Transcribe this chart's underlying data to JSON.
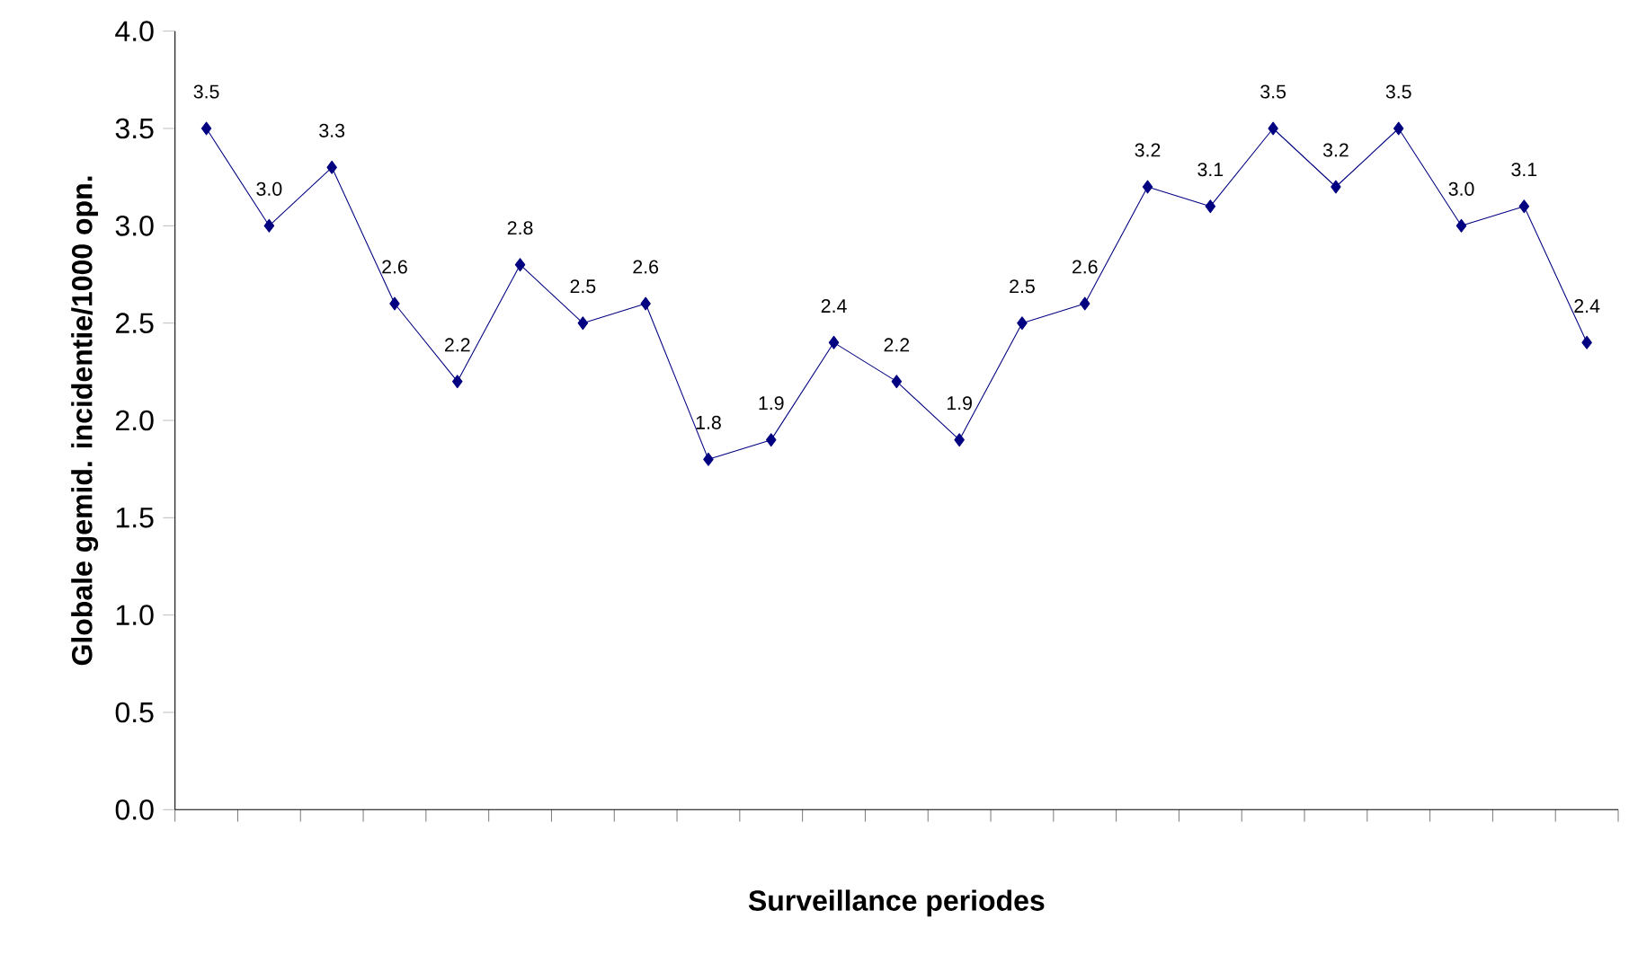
{
  "chart_data": {
    "type": "line",
    "xlabel": "Surveillance periodes",
    "ylabel": "Globale gemid. incidentie/1000 opn.",
    "categories": [
      null,
      null,
      null,
      null,
      null,
      null,
      null,
      null,
      null,
      null,
      null,
      null,
      null,
      null,
      null,
      null,
      null,
      null,
      null,
      null,
      null,
      null,
      null
    ],
    "values": [
      3.5,
      3.0,
      3.3,
      2.6,
      2.2,
      2.8,
      2.5,
      2.6,
      1.8,
      1.9,
      2.4,
      2.2,
      1.9,
      2.5,
      2.6,
      3.2,
      3.1,
      3.5,
      3.2,
      3.5,
      3.0,
      3.1,
      2.4
    ],
    "color": "#000080",
    "marker": "diamond",
    "line_style": "solid",
    "value_labels": [
      "3.5",
      "3.0",
      "3.3",
      "2.6",
      "2.2",
      "2.8",
      "2.5",
      "2.6",
      "1.8",
      "1.9",
      "2.4",
      "2.2",
      "1.9",
      "2.5",
      "2.6",
      "3.2",
      "3.1",
      "3.5",
      "3.2",
      "3.5",
      "3.0",
      "3.1",
      "2.4"
    ],
    "ylim": [
      0,
      4
    ],
    "yticks": [
      {
        "value": 0,
        "label": "0.0"
      },
      {
        "value": 0.5,
        "label": "0.5"
      },
      {
        "value": 1,
        "label": "1.0"
      },
      {
        "value": 1.5,
        "label": "1.5"
      },
      {
        "value": 2,
        "label": "2.0"
      },
      {
        "value": 2.5,
        "label": "2.5"
      },
      {
        "value": 3,
        "label": "3.0"
      },
      {
        "value": 3.5,
        "label": "3.5"
      },
      {
        "value": 4,
        "label": "4.0"
      }
    ]
  }
}
